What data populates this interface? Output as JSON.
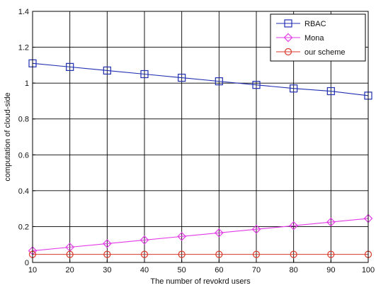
{
  "chart_data": {
    "type": "line",
    "title": "",
    "xlabel": "The number of revokrd users",
    "ylabel": "computation of cloud-side",
    "x": [
      10,
      20,
      30,
      40,
      50,
      60,
      70,
      80,
      90,
      100
    ],
    "xlim": [
      10,
      100
    ],
    "ylim": [
      0,
      1.4
    ],
    "xticks": [
      "10",
      "20",
      "30",
      "40",
      "50",
      "60",
      "70",
      "80",
      "90",
      "100"
    ],
    "yticks": [
      "0",
      "0.2",
      "0.4",
      "0.6",
      "0.8",
      "1",
      "1.2",
      "1.4"
    ],
    "ytick_values": [
      0,
      0.2,
      0.4,
      0.6,
      0.8,
      1.0,
      1.2,
      1.4
    ],
    "grid": true,
    "legend_position": "top-right",
    "series": [
      {
        "name": "RBAC",
        "color": "#1f2fb0",
        "marker": "square",
        "values": [
          1.11,
          1.09,
          1.07,
          1.05,
          1.03,
          1.01,
          0.99,
          0.97,
          0.955,
          0.93
        ]
      },
      {
        "name": "Mona",
        "color": "#e23ae6",
        "marker": "diamond",
        "values": [
          0.065,
          0.085,
          0.105,
          0.125,
          0.145,
          0.165,
          0.185,
          0.205,
          0.225,
          0.245
        ]
      },
      {
        "name": "our scheme",
        "color": "#d93a2a",
        "marker": "circle",
        "values": [
          0.045,
          0.045,
          0.045,
          0.045,
          0.045,
          0.045,
          0.045,
          0.045,
          0.045,
          0.045
        ]
      }
    ]
  }
}
